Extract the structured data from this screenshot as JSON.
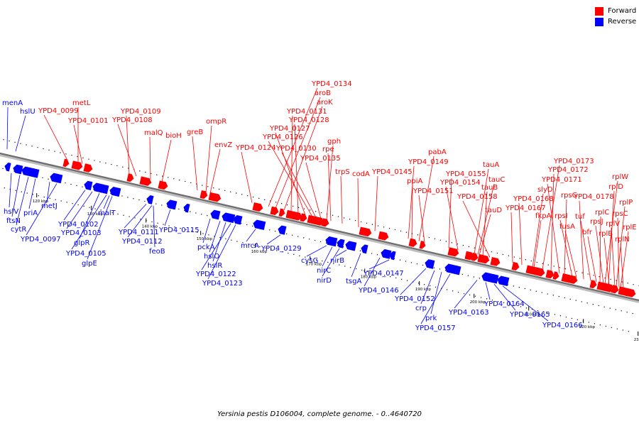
{
  "legend": [
    {
      "label": "Forward",
      "color": "#ff0000"
    },
    {
      "label": "Reverse",
      "color": "#0000ff"
    }
  ],
  "caption": "Yersinia pestis D106004, complete genome. - 0..4640720",
  "ticks": [
    {
      "label": "120 kbp",
      "kb": 120
    },
    {
      "label": "130 kbp",
      "kb": 130
    },
    {
      "label": "140 kbp",
      "kb": 140
    },
    {
      "label": "150 kbp",
      "kb": 150
    },
    {
      "label": "160 kbp",
      "kb": 160
    },
    {
      "label": "170 kbp",
      "kb": 170
    },
    {
      "label": "180 kbp",
      "kb": 180
    },
    {
      "label": "190 kbp",
      "kb": 190
    },
    {
      "label": "200 kbp",
      "kb": 200
    },
    {
      "label": "210 kbp",
      "kb": 210
    },
    {
      "label": "220 kbp",
      "kb": 220
    },
    {
      "label": "230 kbp",
      "kb": 230
    }
  ],
  "forward_labels": [
    "YPD4_0099",
    "metL",
    "YPD4_0101",
    "YPD4_0109",
    "YPD4_0108",
    "malQ",
    "bioH",
    "greB",
    "ompR",
    "envZ",
    "YPD4_0124",
    "YPD4_0134",
    "aroB",
    "aroK",
    "YPD4_0131",
    "YPD4_0128",
    "YPD4_0127",
    "YPD4_0126",
    "YPD4_0130",
    "YPD4_0135",
    "gph",
    "rpe",
    "trpS",
    "codA",
    "YPD4_0145",
    "pabA",
    "YPD4_0149",
    "ppiA",
    "YPD4_0151",
    "YPD4_0155",
    "YPD4_0154",
    "tauA",
    "tauC",
    "tauB",
    "YPD4_0158",
    "tauD",
    "YPD4_0167",
    "YPD4_0168",
    "fkpA",
    "slyD",
    "YPD4_0173",
    "YPD4_0172",
    "YPD4_0171",
    "rpsG",
    "rpsI",
    "fusA",
    "YPD4_0178",
    "tuf",
    "bfr",
    "rplW",
    "rplD",
    "rplC",
    "rpsJ",
    "rplB",
    "rplP",
    "rpsC",
    "rplV",
    "rplE",
    "rplN"
  ],
  "reverse_labels": [
    "menA",
    "hslU",
    "hslV",
    "ftsN",
    "cytR",
    "priA",
    "metJ",
    "YPD4_0097",
    "YPD4_0102",
    "YPD4_0103",
    "glpR",
    "YPD4_0105",
    "glpE",
    "malT",
    "YPD4_0111",
    "YPD4_0112",
    "feoB",
    "YPD4_0115",
    "pckA",
    "hslO",
    "hslR",
    "YPD4_0122",
    "YPD4_0123",
    "mrcA",
    "YPD4_0129",
    "cysG",
    "nirC",
    "nirD",
    "nirB",
    "tsgA",
    "YPD4_0146",
    "YPD4_0147",
    "YPD4_0152",
    "crp",
    "prk",
    "YPD4_0157",
    "YPD4_0163",
    "YPD4_0164",
    "YPD4_0165",
    "YPD4_0166"
  ]
}
